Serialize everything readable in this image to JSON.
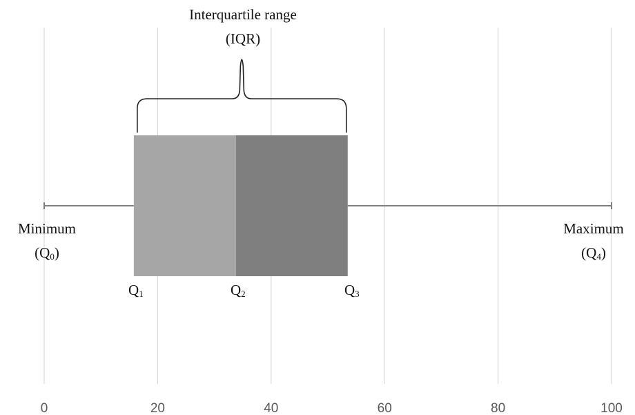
{
  "chart_data": {
    "type": "box",
    "xlim": [
      0,
      100
    ],
    "x_ticks": [
      0,
      20,
      40,
      60,
      80,
      100
    ],
    "grid": true,
    "box": {
      "min": 0,
      "q1": 15.8,
      "median": 33.8,
      "q3": 53.5,
      "max": 100
    },
    "colors": {
      "lower_box": "#a6a6a6",
      "upper_box": "#7f7f7f",
      "whisker": "#7f7f7f",
      "grid": "#d9d9d9"
    },
    "annotations": {
      "iqr_title": "Interquartile range",
      "iqr_abbrev": "(IQR)",
      "min_label": "Minimum",
      "min_sub_open": "(Q",
      "min_sub_index": "0",
      "max_label": "Maximum",
      "max_sub_open": "(Q",
      "max_sub_index": "4",
      "close_paren": ")",
      "q_letter": "Q",
      "q1_index": "1",
      "q2_index": "2",
      "q3_index": "3"
    }
  }
}
